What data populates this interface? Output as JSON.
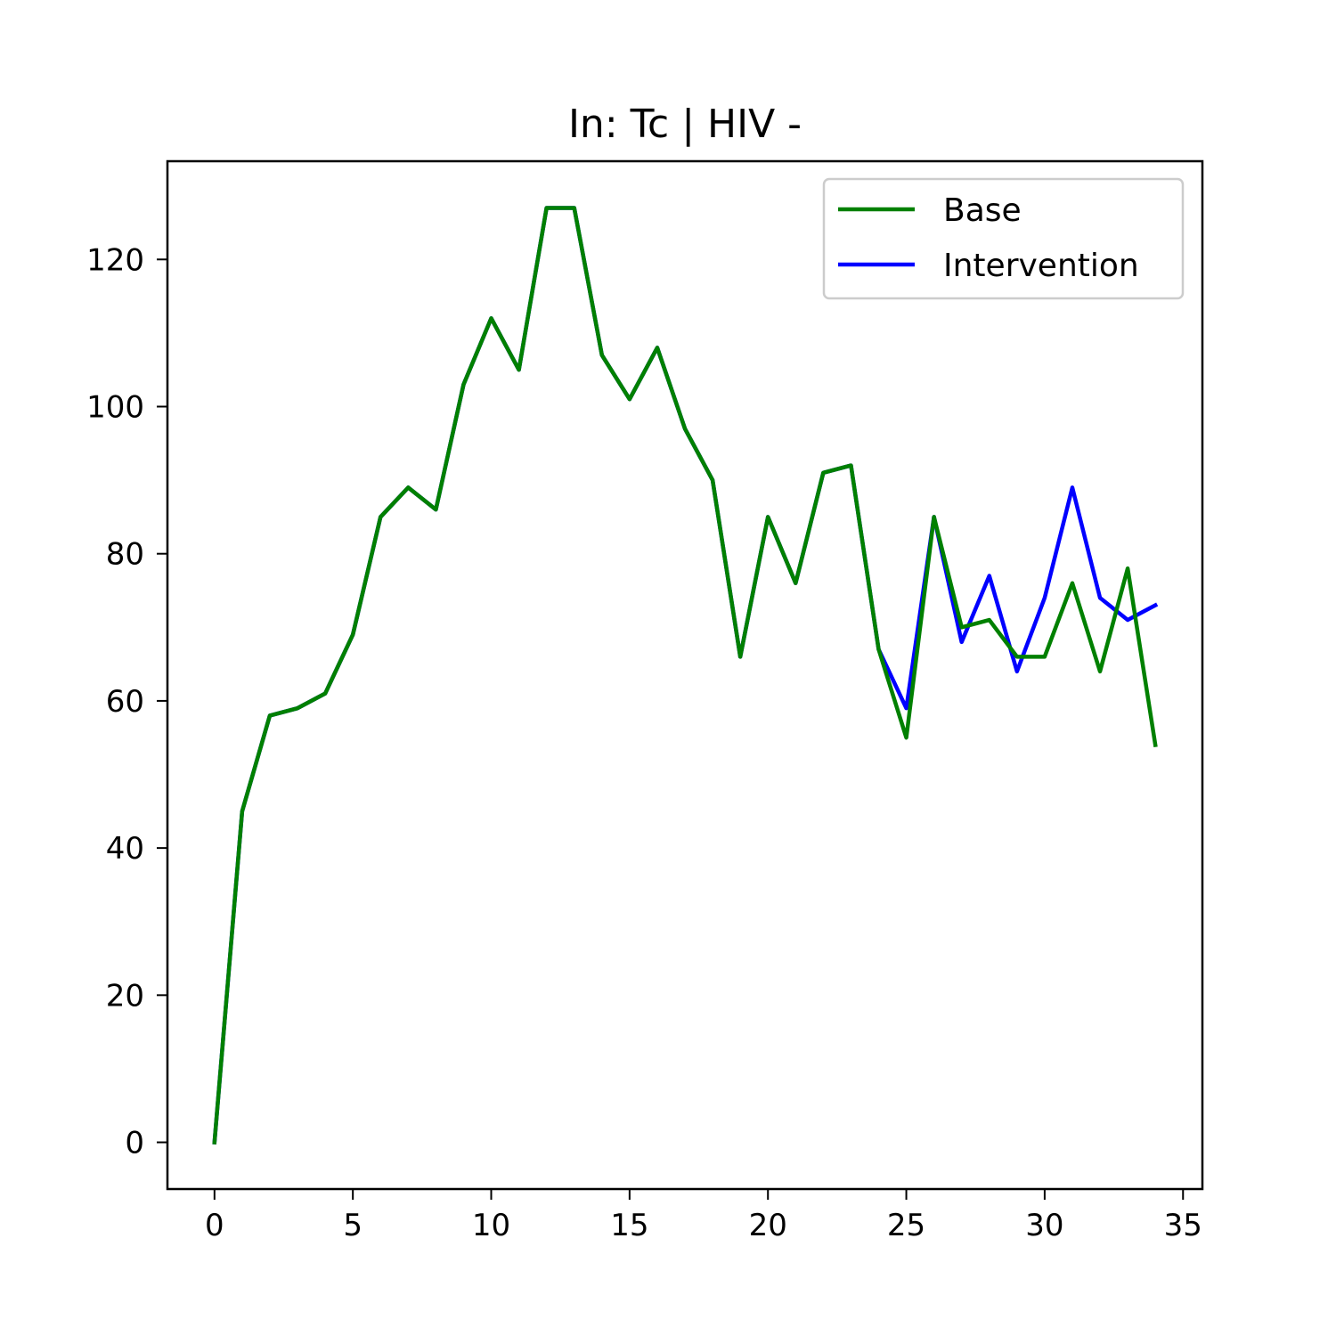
{
  "chart_data": {
    "type": "line",
    "title": "In: Tc | HIV -",
    "xlabel": "",
    "ylabel": "",
    "xlim": [
      -1.7,
      35.7
    ],
    "ylim": [
      -6.35,
      133.35
    ],
    "xticks": [
      0,
      5,
      10,
      15,
      20,
      25,
      30,
      35
    ],
    "yticks": [
      0,
      20,
      40,
      60,
      80,
      100,
      120
    ],
    "grid": false,
    "legend_position": "top-right",
    "x": [
      0,
      1,
      2,
      3,
      4,
      5,
      6,
      7,
      8,
      9,
      10,
      11,
      12,
      13,
      14,
      15,
      16,
      17,
      18,
      19,
      20,
      21,
      22,
      23,
      24,
      25,
      26,
      27,
      28,
      29,
      30,
      31,
      32,
      33,
      34
    ],
    "series": [
      {
        "name": "Intervention",
        "color": "#0000ff",
        "values": [
          0,
          45,
          58,
          59,
          61,
          69,
          85,
          89,
          86,
          103,
          112,
          105,
          127,
          127,
          107,
          101,
          108,
          97,
          90,
          66,
          85,
          76,
          91,
          92,
          67,
          59,
          85,
          68,
          77,
          64,
          74,
          89,
          74,
          71,
          73
        ]
      },
      {
        "name": "Base",
        "color": "#008000",
        "values": [
          0,
          45,
          58,
          59,
          61,
          69,
          85,
          89,
          86,
          103,
          112,
          105,
          127,
          127,
          107,
          101,
          108,
          97,
          90,
          66,
          85,
          76,
          91,
          92,
          67,
          55,
          85,
          70,
          71,
          66,
          66,
          76,
          64,
          78,
          54
        ]
      }
    ],
    "legend_order": [
      "Base",
      "Intervention"
    ]
  }
}
